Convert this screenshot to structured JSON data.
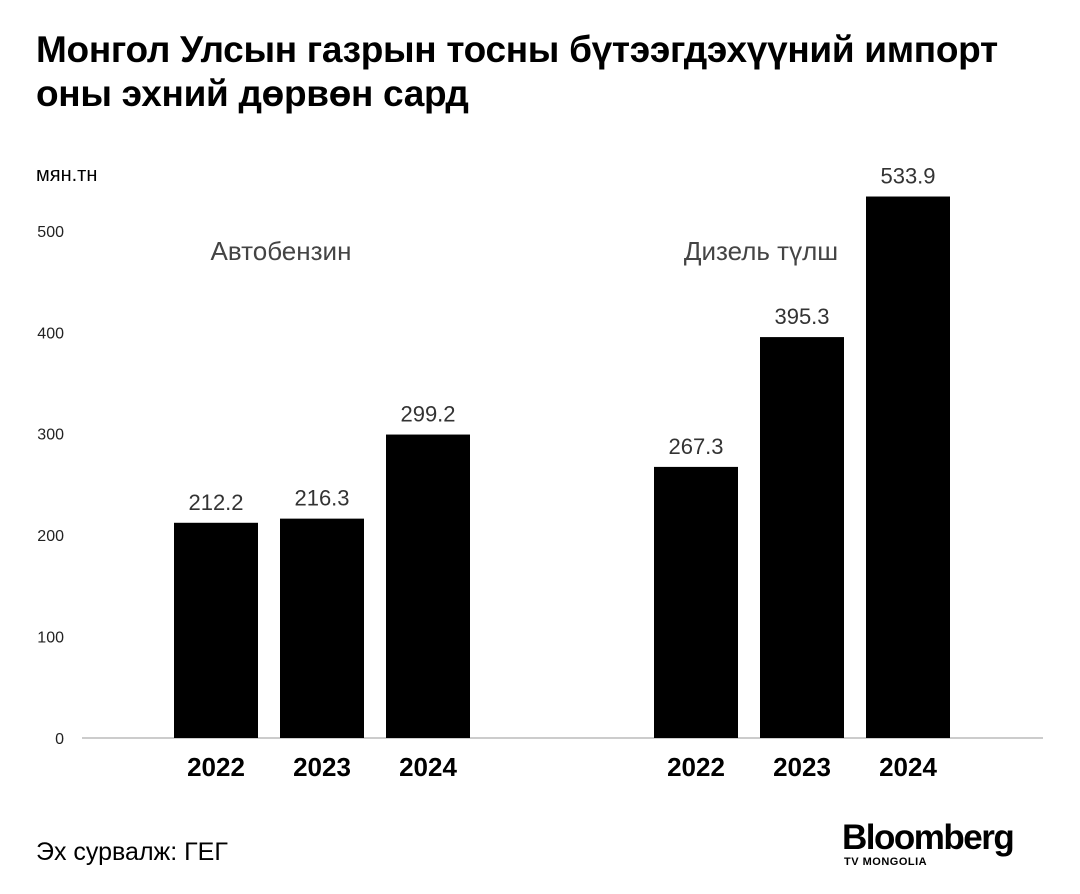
{
  "title": "Монгол Улсын газрын тосны бүтээгдэхүүний импорт оны эхний дөрвөн сард",
  "source": "Эх сурвалж: ГЕГ",
  "logo": {
    "main": "Bloomberg",
    "sub": "TV MONGOLIA"
  },
  "chart_data": {
    "type": "bar",
    "ylabel": "мян.тн",
    "ylim": [
      0,
      560
    ],
    "yticks": [
      0,
      100,
      200,
      300,
      400,
      500
    ],
    "bar_color": "#000000",
    "groups": [
      {
        "name": "Автобензин",
        "categories": [
          "2022",
          "2023",
          "2024"
        ],
        "values": [
          212.2,
          216.3,
          299.2
        ],
        "labels": [
          "212.2",
          "216.3",
          "299.2"
        ]
      },
      {
        "name": "Дизель түлш",
        "categories": [
          "2022",
          "2023",
          "2024"
        ],
        "values": [
          267.3,
          395.3,
          533.9
        ],
        "labels": [
          "267.3",
          "395.3",
          "533.9"
        ]
      }
    ]
  }
}
